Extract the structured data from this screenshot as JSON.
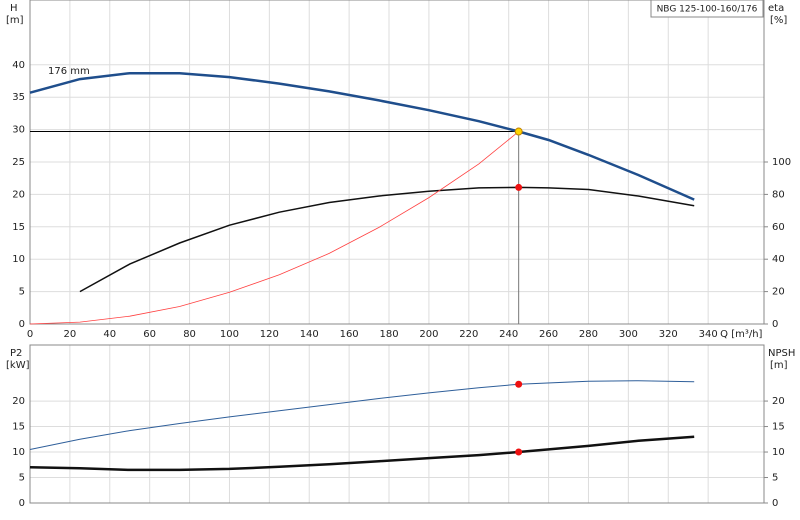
{
  "chart_data": [
    {
      "type": "line",
      "title": "NBG 125-100-160/176",
      "annotation": "176 mm",
      "ylabel": "H",
      "ylabel_unit": "[m]",
      "y2label": "eta",
      "y2label_unit": "[%]",
      "xlabel": "Q [m³/h]",
      "xlim": [
        0,
        368
      ],
      "xticks": [
        0,
        20,
        40,
        60,
        80,
        100,
        120,
        140,
        160,
        180,
        200,
        220,
        240,
        260,
        280,
        300,
        320,
        340
      ],
      "ylim": [
        0,
        50
      ],
      "yticks": [
        0,
        5,
        10,
        15,
        20,
        25,
        30,
        35,
        40
      ],
      "y2lim": [
        0,
        200
      ],
      "y2ticks": [
        0,
        20,
        40,
        60,
        80,
        100
      ],
      "grid": true,
      "series": [
        {
          "color": "#1f4e8c",
          "width": 2.5,
          "x": [
            0,
            25,
            50,
            75,
            100,
            125,
            150,
            175,
            200,
            225,
            245,
            260,
            280,
            305,
            333
          ],
          "values": [
            35.7,
            37.8,
            38.7,
            38.7,
            38.1,
            37.1,
            35.9,
            34.5,
            33,
            31.3,
            29.7,
            28.4,
            26.1,
            23,
            19.2
          ]
        },
        {
          "color": "#111111",
          "width": 1.5,
          "axis": "y2",
          "x": [
            25,
            50,
            75,
            100,
            125,
            150,
            175,
            200,
            225,
            245,
            260,
            280,
            305,
            333
          ],
          "values": [
            20,
            37,
            50,
            61,
            69,
            75,
            79,
            82,
            84,
            84.3,
            84,
            83,
            79,
            73
          ]
        },
        {
          "color": "#ff4040",
          "width": 0.8,
          "x": [
            0,
            25,
            50,
            75,
            100,
            125,
            150,
            175,
            200,
            225,
            245
          ],
          "values": [
            0,
            0.3,
            1.2,
            2.7,
            4.9,
            7.6,
            10.9,
            14.9,
            19.5,
            24.7,
            29.7
          ]
        }
      ],
      "points": [
        {
          "x": 245,
          "y": 29.7,
          "color": "#ffd400",
          "guides": true
        },
        {
          "x": 245,
          "y": 84.3,
          "color": "#ee1111",
          "axis": "y2"
        }
      ]
    },
    {
      "type": "line",
      "ylabel": "P2",
      "ylabel_unit": "[kW]",
      "y2label": "NPSH",
      "y2label_unit": "[m]",
      "xlim": [
        0,
        368
      ],
      "ylim": [
        0,
        31
      ],
      "yticks": [
        0,
        5,
        10,
        15,
        20
      ],
      "y2lim": [
        0,
        31
      ],
      "y2ticks": [
        0,
        5,
        10,
        15,
        20
      ],
      "grid": true,
      "series": [
        {
          "color": "#2f5f9a",
          "width": 1,
          "x": [
            0,
            25,
            50,
            75,
            100,
            125,
            150,
            175,
            200,
            225,
            245,
            280,
            305,
            333
          ],
          "values": [
            10.5,
            12.5,
            14.2,
            15.6,
            16.9,
            18.1,
            19.3,
            20.5,
            21.6,
            22.6,
            23.3,
            23.9,
            24,
            23.8
          ]
        },
        {
          "color": "#111111",
          "width": 2.5,
          "axis": "y2",
          "x": [
            0,
            25,
            50,
            75,
            100,
            125,
            150,
            175,
            200,
            225,
            245,
            280,
            305,
            333
          ],
          "values": [
            7,
            6.8,
            6.5,
            6.5,
            6.7,
            7.1,
            7.6,
            8.2,
            8.8,
            9.4,
            10,
            11.2,
            12.2,
            13
          ]
        }
      ],
      "points": [
        {
          "x": 245,
          "y": 23.3,
          "color": "#ee1111"
        },
        {
          "x": 245,
          "y": 10,
          "color": "#ee1111",
          "axis": "y2"
        }
      ]
    }
  ]
}
